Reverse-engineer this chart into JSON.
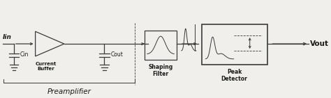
{
  "bg_color": "#f0efeb",
  "line_color": "#3a3a3a",
  "text_color": "#1a1a1a",
  "title_text": "Preamplifier",
  "label_iin": "Iin",
  "label_cin": "Cin",
  "label_cout": "Cout",
  "label_buffer": "Current\nBuffer",
  "label_shaping": "Shaping\nFilter",
  "label_peak": "Peak\nDetector",
  "label_vout": "Vout",
  "figsize": [
    4.74,
    1.41
  ],
  "dpi": 100
}
